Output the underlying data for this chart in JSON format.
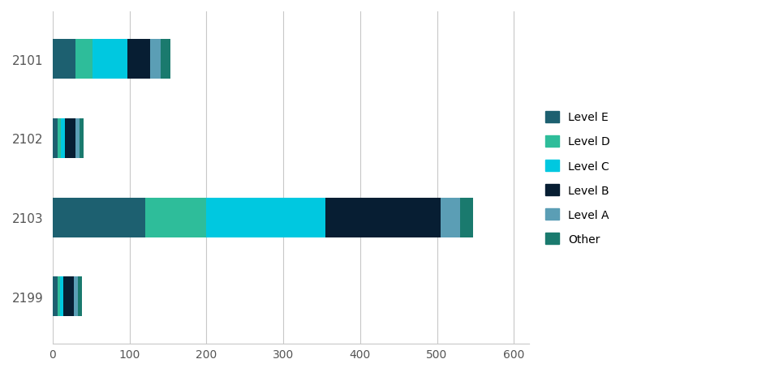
{
  "categories": [
    "2101",
    "2102",
    "2103",
    "2199"
  ],
  "levels": [
    "Level E",
    "Level D",
    "Level C",
    "Level B",
    "Level A",
    "Other"
  ],
  "colors": [
    "#1d6070",
    "#2ebd9a",
    "#00c8e0",
    "#071e33",
    "#5b9eb5",
    "#1a7a6e"
  ],
  "values": {
    "Level E": [
      30,
      7,
      120,
      7
    ],
    "Level D": [
      22,
      4,
      80,
      3
    ],
    "Level C": [
      45,
      5,
      155,
      4
    ],
    "Level B": [
      30,
      14,
      150,
      14
    ],
    "Level A": [
      14,
      5,
      25,
      5
    ],
    "Other": [
      12,
      5,
      17,
      5
    ]
  },
  "xlim": [
    0,
    620
  ],
  "xticks": [
    0,
    100,
    200,
    300,
    400,
    500,
    600
  ],
  "background_color": "#ffffff",
  "grid_color": "#c8c8c8",
  "bar_height": 0.5
}
